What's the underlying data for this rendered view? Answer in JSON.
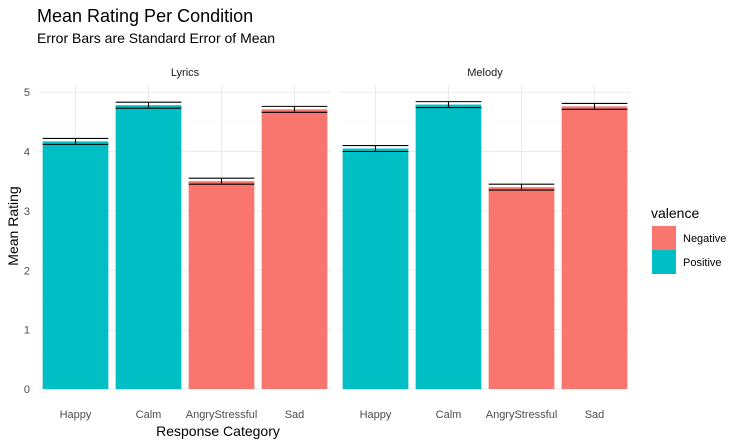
{
  "chart_data": {
    "type": "bar",
    "title": "Mean Rating Per Condition",
    "subtitle": "Error Bars are Standard Error of Mean",
    "xlabel": "Response Category",
    "ylabel": "Mean Rating",
    "ylim": [
      0,
      5
    ],
    "yticks": [
      0,
      1,
      2,
      3,
      4,
      5
    ],
    "grid": true,
    "categories": [
      "Happy",
      "Calm",
      "AngryStressful",
      "Sad"
    ],
    "legend": {
      "title": "valence",
      "position": "right",
      "entries": [
        {
          "label": "Negative",
          "color": "#F8766D"
        },
        {
          "label": "Positive",
          "color": "#00BFC4"
        }
      ]
    },
    "panels": [
      {
        "name": "Lyrics",
        "bars": [
          {
            "category": "Happy",
            "value": 4.17,
            "se": 0.05,
            "valence": "Positive"
          },
          {
            "category": "Calm",
            "value": 4.78,
            "se": 0.05,
            "valence": "Positive"
          },
          {
            "category": "AngryStressful",
            "value": 3.5,
            "se": 0.05,
            "valence": "Negative"
          },
          {
            "category": "Sad",
            "value": 4.71,
            "se": 0.05,
            "valence": "Negative"
          }
        ]
      },
      {
        "name": "Melody",
        "bars": [
          {
            "category": "Happy",
            "value": 4.05,
            "se": 0.05,
            "valence": "Positive"
          },
          {
            "category": "Calm",
            "value": 4.79,
            "se": 0.05,
            "valence": "Positive"
          },
          {
            "category": "AngryStressful",
            "value": 3.4,
            "se": 0.05,
            "valence": "Negative"
          },
          {
            "category": "Sad",
            "value": 4.76,
            "se": 0.05,
            "valence": "Negative"
          }
        ]
      }
    ]
  }
}
